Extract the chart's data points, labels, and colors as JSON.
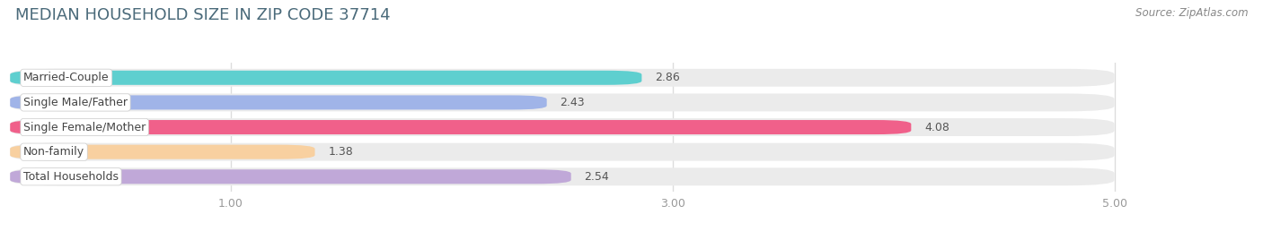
{
  "title": "MEDIAN HOUSEHOLD SIZE IN ZIP CODE 37714",
  "source": "Source: ZipAtlas.com",
  "categories": [
    "Married-Couple",
    "Single Male/Father",
    "Single Female/Mother",
    "Non-family",
    "Total Households"
  ],
  "values": [
    2.86,
    2.43,
    4.08,
    1.38,
    2.54
  ],
  "bar_colors": [
    "#5ecfcf",
    "#a0b4e8",
    "#f0608a",
    "#f8d0a0",
    "#c0a8d8"
  ],
  "background_color": "#ffffff",
  "bar_background_color": "#ebebeb",
  "xlim_min": 0,
  "xlim_max": 5.33,
  "data_max": 5.0,
  "xticks": [
    1.0,
    3.0,
    5.0
  ],
  "title_fontsize": 13,
  "label_fontsize": 9,
  "value_fontsize": 9,
  "source_fontsize": 8.5,
  "title_color": "#4a6a7a",
  "source_color": "#888888",
  "tick_color": "#999999",
  "value_color": "#555555",
  "label_color": "#444444",
  "grid_color": "#dddddd"
}
